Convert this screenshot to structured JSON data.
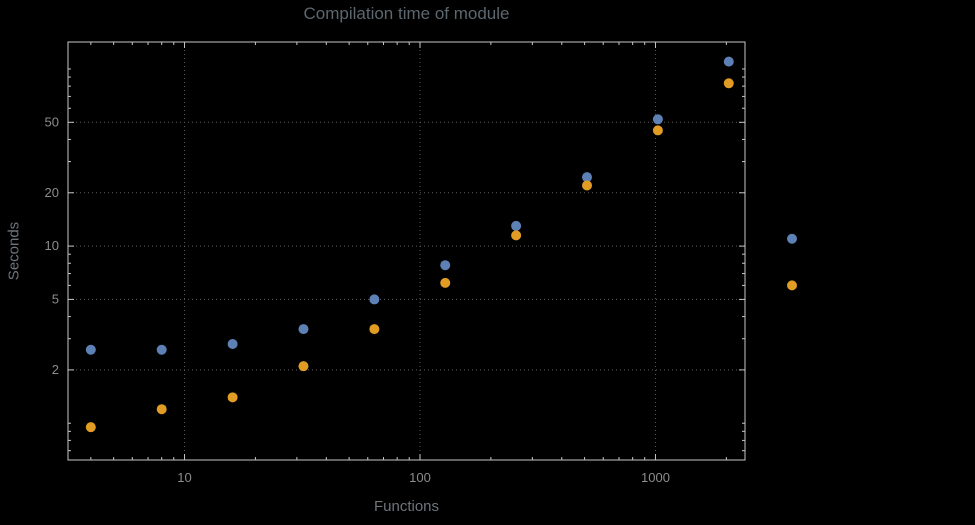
{
  "chart_data": {
    "type": "scatter",
    "title": "Compilation time of module",
    "xlabel": "Functions",
    "ylabel": "Seconds",
    "x_scale": "log",
    "y_scale": "log",
    "x_range": [
      3.2,
      2400
    ],
    "y_range": [
      0.62,
      142
    ],
    "grid": true,
    "x_ticks": [
      10,
      100,
      1000
    ],
    "x_tick_labels": [
      "10",
      "100",
      "1000"
    ],
    "y_ticks": [
      2,
      5,
      10,
      20,
      50
    ],
    "y_tick_labels": [
      "2",
      "5",
      "10",
      "20",
      "50"
    ],
    "x": [
      4,
      8,
      16,
      32,
      64,
      128,
      256,
      512,
      1024,
      2048
    ],
    "series": [
      {
        "name": "series-blue",
        "color": "#5e81b5",
        "values": [
          2.6,
          2.6,
          2.8,
          3.4,
          5.0,
          7.8,
          13,
          24.5,
          52,
          110
        ]
      },
      {
        "name": "series-orange",
        "color": "#e19c24",
        "values": [
          0.95,
          1.2,
          1.4,
          2.1,
          3.4,
          6.2,
          11.5,
          22,
          45,
          83
        ]
      }
    ],
    "outside_points": [
      {
        "series": "series-blue",
        "x": 3800,
        "y": 11,
        "color": "#5e81b5"
      },
      {
        "series": "series-orange",
        "x": 3800,
        "y": 6,
        "color": "#e19c24"
      }
    ]
  },
  "colors": {
    "background": "#000000",
    "frame": "#c7c7c7",
    "gridline": "#5a5a5a",
    "tick_label": "#8c8c8c",
    "title_text": "#5c676f",
    "axis_label_text": "#6d747a",
    "series_blue": "#5e81b5",
    "series_orange": "#e19c24"
  }
}
